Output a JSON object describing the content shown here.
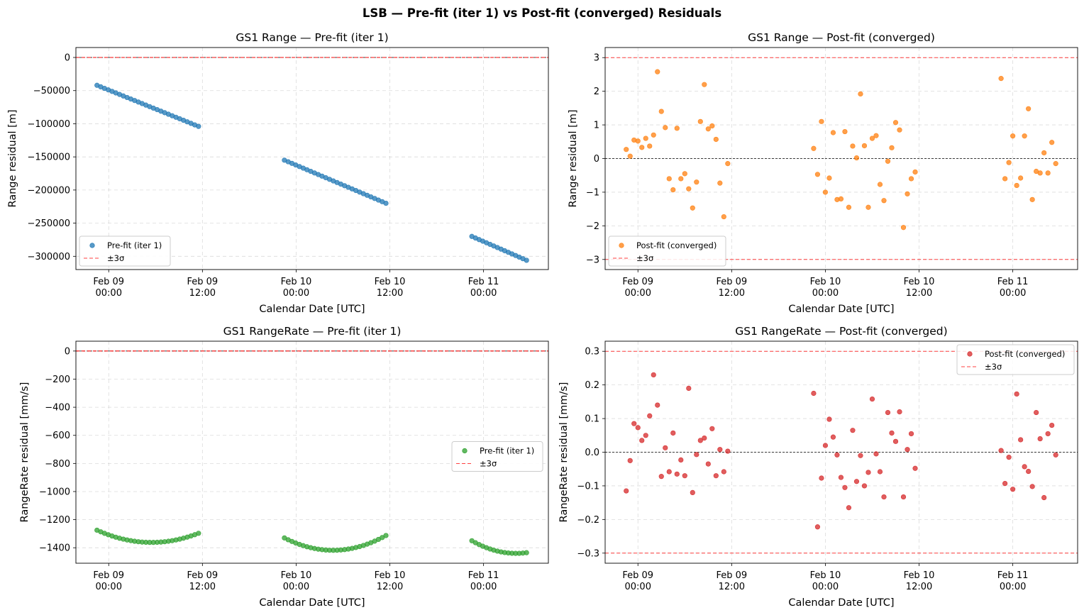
{
  "figure": {
    "title": "LSB — Pre-fit (iter 1) vs Post-fit (converged) Residuals"
  },
  "colors": {
    "blue": "#1f77b4",
    "orange": "#ff7f0e",
    "green": "#2ca02c",
    "red": "#d62728",
    "sigma_line": "#ff0000",
    "grid": "#b0b0b0"
  },
  "chart_data": [
    {
      "type": "scatter",
      "title": "GS1 Range — Pre-fit (iter 1)",
      "xlabel": "Calendar Date [UTC]",
      "ylabel": "Range residual [m]",
      "x_ticks": [
        "Feb 09 00:00",
        "Feb 09 12:00",
        "Feb 10 00:00",
        "Feb 10 12:00",
        "Feb 11 00:00"
      ],
      "y_ticks": [
        "0",
        "−50000",
        "−100000",
        "−150000",
        "−200000",
        "−250000",
        "−300000"
      ],
      "ylim": [
        -320000,
        15000
      ],
      "xlim_hours": [
        -4.2,
        56.3
      ],
      "sigma3": 3,
      "legend": [
        "Pre-fit (iter 1)",
        "±3σ"
      ],
      "legend_loc": "lower left",
      "grid": true,
      "series": [
        {
          "name": "Pre-fit (iter 1)",
          "color": "#1f77b4",
          "passes": [
            {
              "start": "Feb 08 22:30",
              "end": "Feb 09 11:30",
              "n": 28,
              "y_start": -42000,
              "y_end": -104000
            },
            {
              "start": "Feb 09 22:30",
              "end": "Feb 10 11:30",
              "n": 28,
              "y_start": -155000,
              "y_end": -220000
            },
            {
              "start": "Feb 10 22:30",
              "end": "Feb 11 05:30",
              "n": 16,
              "y_start": -270000,
              "y_end": -306000
            }
          ]
        }
      ]
    },
    {
      "type": "scatter",
      "title": "GS1 Range — Post-fit (converged)",
      "xlabel": "Calendar Date [UTC]",
      "ylabel": "Range residual [m]",
      "x_ticks": [
        "Feb 09 00:00",
        "Feb 09 12:00",
        "Feb 10 00:00",
        "Feb 10 12:00",
        "Feb 11 00:00"
      ],
      "y_ticks": [
        "3",
        "2",
        "1",
        "0",
        "−1",
        "−2",
        "−3"
      ],
      "ylim": [
        -3.3,
        3.3
      ],
      "xlim_hours": [
        -4.2,
        56.3
      ],
      "sigma3": 3,
      "legend": [
        "Post-fit (converged)",
        "±3σ"
      ],
      "legend_loc": "lower left",
      "grid": true,
      "series": [
        {
          "name": "Post-fit (converged)",
          "color": "#ff7f0e",
          "points": [
            [
              "Feb 08 22:30",
              0.27
            ],
            [
              "Feb 08 23:00",
              0.07
            ],
            [
              "Feb 08 23:30",
              0.55
            ],
            [
              "Feb 09 00:00",
              0.52
            ],
            [
              "Feb 09 00:30",
              0.33
            ],
            [
              "Feb 09 01:00",
              0.6
            ],
            [
              "Feb 09 01:30",
              0.37
            ],
            [
              "Feb 09 02:00",
              0.7
            ],
            [
              "Feb 09 02:30",
              2.58
            ],
            [
              "Feb 09 03:00",
              1.4
            ],
            [
              "Feb 09 03:30",
              0.92
            ],
            [
              "Feb 09 04:00",
              -0.6
            ],
            [
              "Feb 09 04:30",
              -0.93
            ],
            [
              "Feb 09 05:00",
              0.9
            ],
            [
              "Feb 09 05:30",
              -0.6
            ],
            [
              "Feb 09 06:00",
              -0.45
            ],
            [
              "Feb 09 06:30",
              -0.9
            ],
            [
              "Feb 09 07:00",
              -1.47
            ],
            [
              "Feb 09 07:30",
              -0.7
            ],
            [
              "Feb 09 08:00",
              1.1
            ],
            [
              "Feb 09 08:30",
              2.2
            ],
            [
              "Feb 09 09:00",
              0.88
            ],
            [
              "Feb 09 09:30",
              0.97
            ],
            [
              "Feb 09 10:00",
              0.57
            ],
            [
              "Feb 09 10:30",
              -0.73
            ],
            [
              "Feb 09 11:00",
              -1.73
            ],
            [
              "Feb 09 11:30",
              -0.15
            ],
            [
              "Feb 09 22:30",
              0.3
            ],
            [
              "Feb 09 23:00",
              -0.47
            ],
            [
              "Feb 09 23:30",
              1.1
            ],
            [
              "Feb 10 00:00",
              -1.0
            ],
            [
              "Feb 10 00:30",
              -0.58
            ],
            [
              "Feb 10 01:00",
              0.77
            ],
            [
              "Feb 10 01:30",
              -1.22
            ],
            [
              "Feb 10 02:00",
              -1.2
            ],
            [
              "Feb 10 02:30",
              0.8
            ],
            [
              "Feb 10 03:00",
              -1.45
            ],
            [
              "Feb 10 03:30",
              0.37
            ],
            [
              "Feb 10 04:00",
              0.02
            ],
            [
              "Feb 10 04:30",
              1.92
            ],
            [
              "Feb 10 05:00",
              0.38
            ],
            [
              "Feb 10 05:30",
              -1.45
            ],
            [
              "Feb 10 06:00",
              0.6
            ],
            [
              "Feb 10 06:30",
              0.68
            ],
            [
              "Feb 10 07:00",
              -0.77
            ],
            [
              "Feb 10 07:30",
              -1.25
            ],
            [
              "Feb 10 08:00",
              -0.08
            ],
            [
              "Feb 10 08:30",
              0.32
            ],
            [
              "Feb 10 09:00",
              1.07
            ],
            [
              "Feb 10 09:30",
              0.85
            ],
            [
              "Feb 10 10:00",
              -2.05
            ],
            [
              "Feb 10 10:30",
              -1.05
            ],
            [
              "Feb 10 11:00",
              -0.6
            ],
            [
              "Feb 10 11:30",
              -0.4
            ],
            [
              "Feb 10 22:30",
              2.38
            ],
            [
              "Feb 10 23:00",
              -0.6
            ],
            [
              "Feb 10 23:30",
              -0.12
            ],
            [
              "Feb 11 00:00",
              0.67
            ],
            [
              "Feb 11 00:30",
              -0.8
            ],
            [
              "Feb 11 01:00",
              -0.58
            ],
            [
              "Feb 11 01:30",
              0.67
            ],
            [
              "Feb 11 02:00",
              1.48
            ],
            [
              "Feb 11 02:30",
              -1.22
            ],
            [
              "Feb 11 03:00",
              -0.38
            ],
            [
              "Feb 11 03:30",
              -0.43
            ],
            [
              "Feb 11 04:00",
              0.17
            ],
            [
              "Feb 11 04:30",
              -0.43
            ],
            [
              "Feb 11 05:00",
              0.48
            ],
            [
              "Feb 11 05:30",
              -0.15
            ]
          ]
        }
      ]
    },
    {
      "type": "scatter",
      "title": "GS1 RangeRate — Pre-fit (iter 1)",
      "xlabel": "Calendar Date [UTC]",
      "ylabel": "RangeRate residual [mm/s]",
      "x_ticks": [
        "Feb 09 00:00",
        "Feb 09 12:00",
        "Feb 10 00:00",
        "Feb 10 12:00",
        "Feb 11 00:00"
      ],
      "y_ticks": [
        "0",
        "−200",
        "−400",
        "−600",
        "−800",
        "−1000",
        "−1200",
        "−1400"
      ],
      "ylim": [
        -1510,
        70
      ],
      "xlim_hours": [
        -4.2,
        56.3
      ],
      "sigma3": 0.3,
      "legend": [
        "Pre-fit (iter 1)",
        "±3σ"
      ],
      "legend_loc": "center right",
      "grid": true,
      "series": [
        {
          "name": "Pre-fit (iter 1)",
          "color": "#2ca02c",
          "passes": [
            {
              "start": "Feb 08 22:30",
              "end": "Feb 09 11:30",
              "n": 28,
              "y_start": -1275,
              "y_min": -1362,
              "y_end": -1297
            },
            {
              "start": "Feb 09 22:30",
              "end": "Feb 10 11:30",
              "n": 28,
              "y_start": -1330,
              "y_min": -1418,
              "y_end": -1313
            },
            {
              "start": "Feb 10 22:30",
              "end": "Feb 11 05:30",
              "n": 16,
              "y_start": -1350,
              "y_min": -1440,
              "y_end": -1435
            }
          ]
        }
      ]
    },
    {
      "type": "scatter",
      "title": "GS1 RangeRate — Post-fit (converged)",
      "xlabel": "Calendar Date [UTC]",
      "ylabel": "RangeRate residual [mm/s]",
      "x_ticks": [
        "Feb 09 00:00",
        "Feb 09 12:00",
        "Feb 10 00:00",
        "Feb 10 12:00",
        "Feb 11 00:00"
      ],
      "y_ticks": [
        "0.3",
        "0.2",
        "0.1",
        "0.0",
        "−0.1",
        "−0.2",
        "−0.3"
      ],
      "ylim": [
        -0.33,
        0.33
      ],
      "xlim_hours": [
        -4.2,
        56.3
      ],
      "sigma3": 0.3,
      "legend": [
        "Post-fit (converged)",
        "±3σ"
      ],
      "legend_loc": "upper right",
      "grid": true,
      "series": [
        {
          "name": "Post-fit (converged)",
          "color": "#d62728",
          "points": [
            [
              "Feb 08 22:30",
              -0.115
            ],
            [
              "Feb 08 23:00",
              -0.025
            ],
            [
              "Feb 08 23:30",
              0.085
            ],
            [
              "Feb 09 00:00",
              0.073
            ],
            [
              "Feb 09 00:30",
              0.035
            ],
            [
              "Feb 09 01:00",
              0.05
            ],
            [
              "Feb 09 01:30",
              0.108
            ],
            [
              "Feb 09 02:00",
              0.23
            ],
            [
              "Feb 09 02:30",
              0.14
            ],
            [
              "Feb 09 03:00",
              -0.072
            ],
            [
              "Feb 09 03:30",
              0.013
            ],
            [
              "Feb 09 04:00",
              -0.058
            ],
            [
              "Feb 09 04:30",
              0.057
            ],
            [
              "Feb 09 05:00",
              -0.065
            ],
            [
              "Feb 09 05:30",
              -0.023
            ],
            [
              "Feb 09 06:00",
              -0.07
            ],
            [
              "Feb 09 06:30",
              0.19
            ],
            [
              "Feb 09 07:00",
              -0.12
            ],
            [
              "Feb 09 07:30",
              -0.007
            ],
            [
              "Feb 09 08:00",
              0.035
            ],
            [
              "Feb 09 08:30",
              0.042
            ],
            [
              "Feb 09 09:00",
              -0.035
            ],
            [
              "Feb 09 09:30",
              0.07
            ],
            [
              "Feb 09 10:00",
              -0.07
            ],
            [
              "Feb 09 10:30",
              0.008
            ],
            [
              "Feb 09 11:00",
              -0.058
            ],
            [
              "Feb 09 11:30",
              0.003
            ],
            [
              "Feb 09 22:30",
              0.175
            ],
            [
              "Feb 09 23:00",
              -0.222
            ],
            [
              "Feb 09 23:30",
              -0.077
            ],
            [
              "Feb 10 00:00",
              0.02
            ],
            [
              "Feb 10 00:30",
              0.098
            ],
            [
              "Feb 10 01:00",
              0.045
            ],
            [
              "Feb 10 01:30",
              -0.008
            ],
            [
              "Feb 10 02:00",
              -0.075
            ],
            [
              "Feb 10 02:30",
              -0.105
            ],
            [
              "Feb 10 03:00",
              -0.165
            ],
            [
              "Feb 10 03:30",
              0.065
            ],
            [
              "Feb 10 04:00",
              -0.087
            ],
            [
              "Feb 10 04:30",
              -0.01
            ],
            [
              "Feb 10 05:00",
              -0.1
            ],
            [
              "Feb 10 05:30",
              -0.06
            ],
            [
              "Feb 10 06:00",
              0.158
            ],
            [
              "Feb 10 06:30",
              -0.005
            ],
            [
              "Feb 10 07:00",
              -0.058
            ],
            [
              "Feb 10 07:30",
              -0.133
            ],
            [
              "Feb 10 08:00",
              0.118
            ],
            [
              "Feb 10 08:30",
              0.057
            ],
            [
              "Feb 10 09:00",
              0.032
            ],
            [
              "Feb 10 09:30",
              0.12
            ],
            [
              "Feb 10 10:00",
              -0.133
            ],
            [
              "Feb 10 10:30",
              0.008
            ],
            [
              "Feb 10 11:00",
              0.055
            ],
            [
              "Feb 10 11:30",
              -0.048
            ],
            [
              "Feb 10 22:30",
              0.005
            ],
            [
              "Feb 10 23:00",
              -0.093
            ],
            [
              "Feb 10 23:30",
              -0.015
            ],
            [
              "Feb 11 00:00",
              -0.11
            ],
            [
              "Feb 11 00:30",
              0.173
            ],
            [
              "Feb 11 01:00",
              0.037
            ],
            [
              "Feb 11 01:30",
              -0.043
            ],
            [
              "Feb 11 02:00",
              -0.057
            ],
            [
              "Feb 11 02:30",
              -0.102
            ],
            [
              "Feb 11 03:00",
              0.118
            ],
            [
              "Feb 11 03:30",
              0.04
            ],
            [
              "Feb 11 04:00",
              -0.135
            ],
            [
              "Feb 11 04:30",
              0.055
            ],
            [
              "Feb 11 05:00",
              0.08
            ],
            [
              "Feb 11 05:30",
              -0.008
            ]
          ]
        }
      ]
    }
  ]
}
